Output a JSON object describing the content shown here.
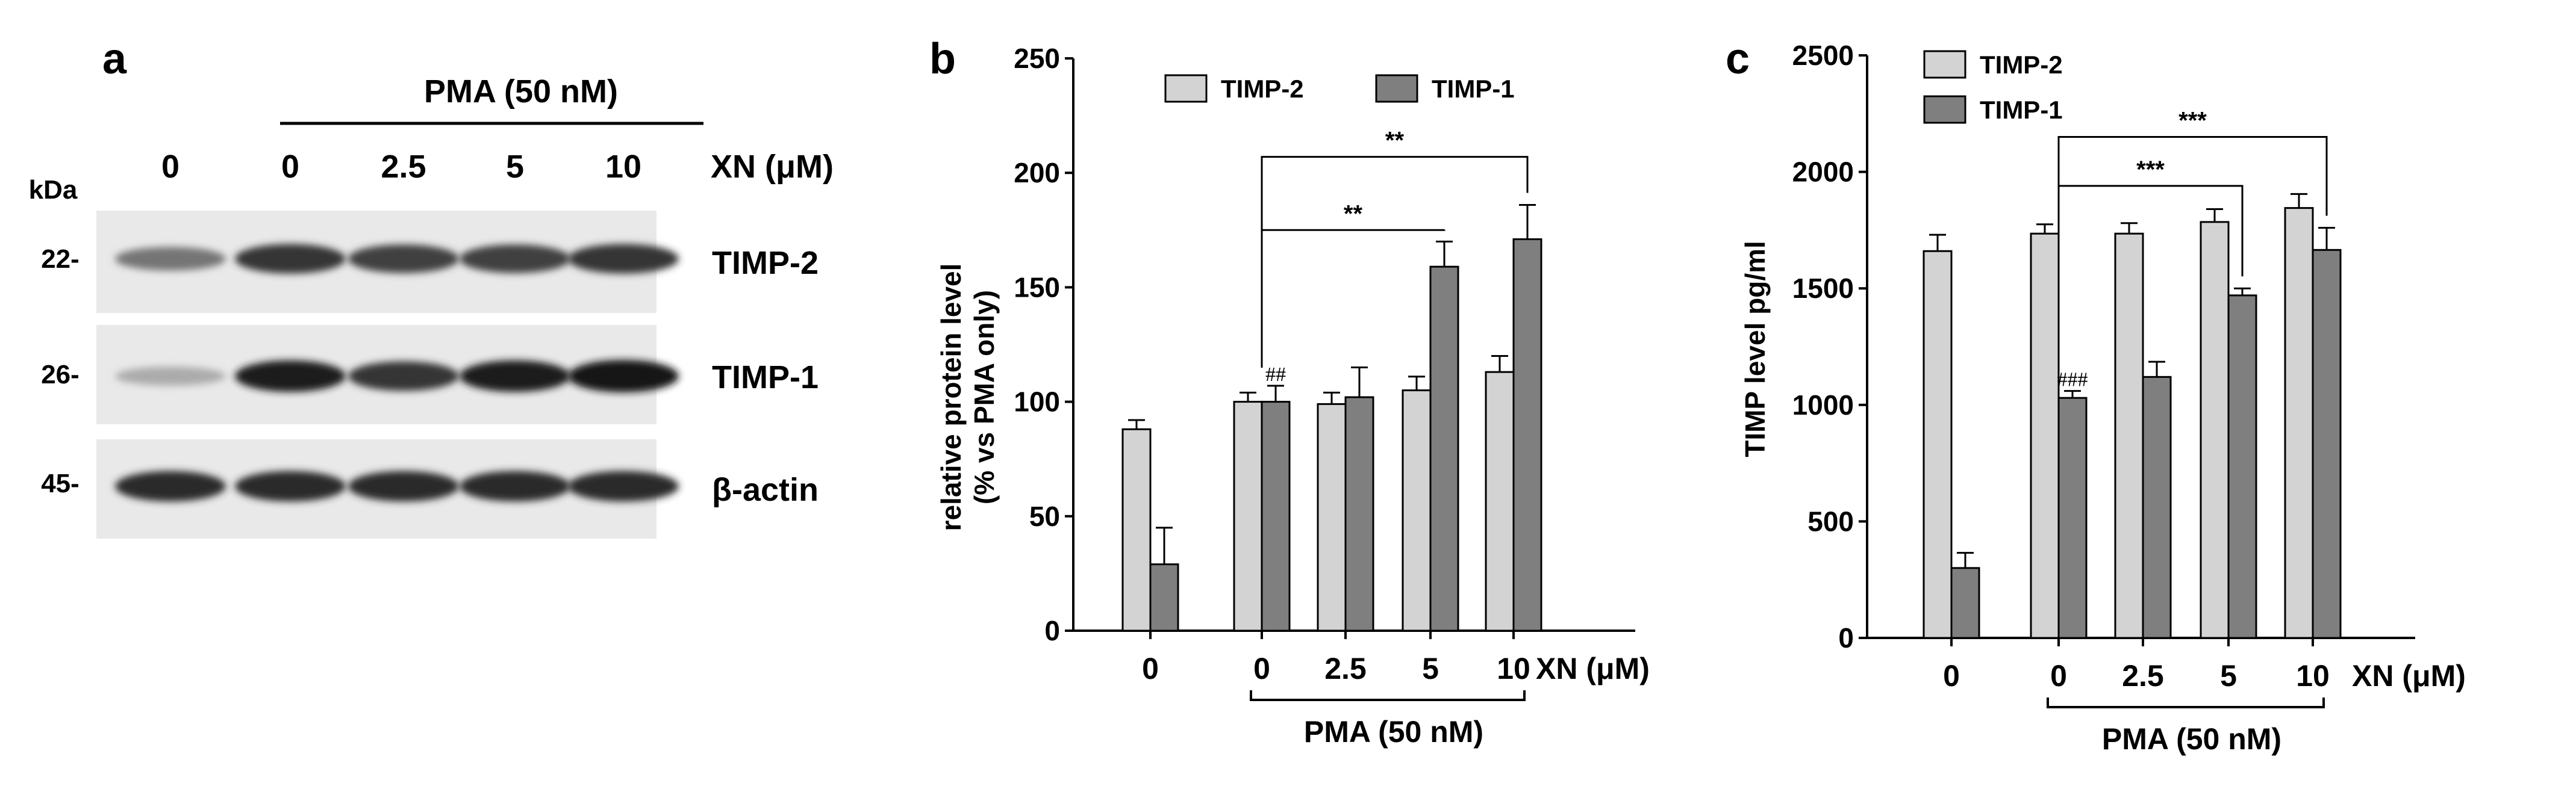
{
  "panel_a": {
    "label": "a",
    "kda_label": "kDa",
    "pma_header": "PMA (50 nM)",
    "lanes": [
      "0",
      "0",
      "2.5",
      "5",
      "10"
    ],
    "xn_label": "XN (μM)",
    "blots": [
      {
        "name": "TIMP-2",
        "kda": "22-",
        "intensities": [
          0.55,
          0.85,
          0.8,
          0.8,
          0.85
        ]
      },
      {
        "name": "TIMP-1",
        "kda": "26-",
        "intensities": [
          0.3,
          0.95,
          0.85,
          0.95,
          1.0
        ]
      },
      {
        "name": "β-actin",
        "kda": "45-",
        "intensities": [
          0.9,
          0.9,
          0.9,
          0.9,
          0.9
        ]
      }
    ]
  },
  "chart_data": [
    {
      "panel": "b",
      "type": "bar",
      "ylabel_line1": "relative protein level",
      "ylabel_line2": "(% vs PMA only)",
      "ylim": [
        0,
        250
      ],
      "yticks": [
        "0",
        "50",
        "100",
        "150",
        "200",
        "250"
      ],
      "categories": [
        "0",
        "0",
        "2.5",
        "5",
        "10"
      ],
      "xlabel": "XN (μM)",
      "bracket_label": "PMA (50 nM)",
      "series": [
        {
          "name": "TIMP-2",
          "color": "#d3d3d3",
          "values": [
            88,
            100,
            99,
            105,
            113
          ],
          "errors": [
            4,
            4,
            5,
            6,
            7
          ]
        },
        {
          "name": "TIMP-1",
          "color": "#7f7f7f",
          "values": [
            29,
            100,
            102,
            159,
            171
          ],
          "errors": [
            16,
            7,
            13,
            11,
            15
          ]
        }
      ],
      "annotations": [
        {
          "text": "##",
          "category": 1,
          "series": 1
        },
        {
          "text": "**",
          "from": 1,
          "to": 3,
          "level": 175
        },
        {
          "text": "**",
          "from": 1,
          "to": 4,
          "level": 207
        }
      ]
    },
    {
      "panel": "c",
      "type": "bar",
      "ylabel": "TIMP level pg/ml",
      "ylim": [
        0,
        2500
      ],
      "yticks": [
        "0",
        "500",
        "1000",
        "1500",
        "2000",
        "2500"
      ],
      "categories": [
        "0",
        "0",
        "2.5",
        "5",
        "10"
      ],
      "xlabel": "XN (μM)",
      "bracket_label": "PMA (50 nM)",
      "series": [
        {
          "name": "TIMP-2",
          "color": "#d3d3d3",
          "values": [
            1660,
            1735,
            1735,
            1785,
            1845
          ],
          "errors": [
            70,
            40,
            45,
            55,
            60
          ]
        },
        {
          "name": "TIMP-1",
          "color": "#7f7f7f",
          "values": [
            300,
            1030,
            1120,
            1470,
            1665
          ],
          "errors": [
            65,
            30,
            65,
            30,
            95
          ]
        }
      ],
      "annotations": [
        {
          "text": "###",
          "category": 1,
          "series": 1
        },
        {
          "text": "***",
          "from": 1,
          "to": 3,
          "level": 1940
        },
        {
          "text": "***",
          "from": 1,
          "to": 4,
          "level": 2150
        }
      ]
    }
  ]
}
